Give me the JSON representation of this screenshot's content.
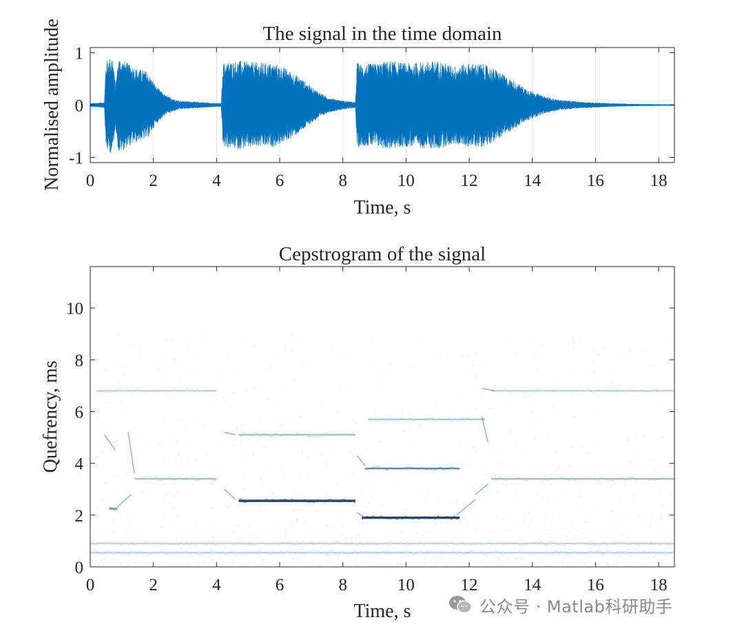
{
  "chart_data": [
    {
      "type": "line",
      "title": "The signal in the time domain",
      "xlabel": "Time, s",
      "ylabel": "Normalised amplitude",
      "xlim": [
        0,
        18.5
      ],
      "ylim": [
        -1.1,
        1.1
      ],
      "xticks": [
        0,
        2,
        4,
        6,
        8,
        10,
        12,
        14,
        16,
        18
      ],
      "yticks": [
        -1,
        0,
        1
      ],
      "ytick_labels": [
        "-1",
        "0",
        "1"
      ],
      "grid": false,
      "series": [
        {
          "name": "signal",
          "color": "#0072BD",
          "envelope_time_s": [
            0,
            0.45,
            0.5,
            0.7,
            0.8,
            0.9,
            1.0,
            1.2,
            1.5,
            1.8,
            2.1,
            2.4,
            2.8,
            3.3,
            3.8,
            4.15,
            4.2,
            4.3,
            4.7,
            5.2,
            5.8,
            6.2,
            6.6,
            7.0,
            7.5,
            8.0,
            8.4,
            8.45,
            8.6,
            9.0,
            9.5,
            10.0,
            10.5,
            11.0,
            11.5,
            12.0,
            12.4,
            12.8,
            13.3,
            13.8,
            14.3,
            14.8,
            15.5,
            16.5,
            17.5,
            18.5
          ],
          "envelope_amplitude": [
            0.03,
            0.05,
            0.85,
            0.95,
            0.4,
            0.92,
            0.88,
            0.8,
            0.7,
            0.65,
            0.35,
            0.18,
            0.08,
            0.06,
            0.04,
            0.03,
            0.8,
            0.82,
            0.85,
            0.82,
            0.8,
            0.7,
            0.55,
            0.35,
            0.15,
            0.08,
            0.05,
            0.82,
            0.78,
            0.8,
            0.85,
            0.8,
            0.82,
            0.85,
            0.75,
            0.8,
            0.8,
            0.7,
            0.5,
            0.32,
            0.18,
            0.1,
            0.06,
            0.03,
            0.015,
            0.01
          ]
        }
      ]
    },
    {
      "type": "heatmap",
      "title": "Cepstrogram of the signal",
      "xlabel": "Time, s",
      "ylabel": "Quefrency, ms",
      "xlim": [
        0,
        18.5
      ],
      "ylim": [
        0,
        11.6
      ],
      "xticks": [
        0,
        2,
        4,
        6,
        8,
        10,
        12,
        14,
        16,
        18
      ],
      "yticks": [
        0,
        2,
        4,
        6,
        8,
        10
      ],
      "colormap": "white-to-dark-blue",
      "grid": false,
      "pitch_tracks": [
        {
          "t0": 0.6,
          "t1": 0.85,
          "q": 2.25,
          "intensity": 0.55
        },
        {
          "t0": 1.4,
          "t1": 4.0,
          "q": 3.4,
          "intensity": 0.45
        },
        {
          "t0": 4.7,
          "t1": 8.4,
          "q": 2.55,
          "intensity": 0.95
        },
        {
          "t0": 4.7,
          "t1": 8.4,
          "q": 5.1,
          "intensity": 0.45
        },
        {
          "t0": 8.6,
          "t1": 11.7,
          "q": 1.9,
          "intensity": 0.95
        },
        {
          "t0": 8.7,
          "t1": 11.7,
          "q": 3.8,
          "intensity": 0.7
        },
        {
          "t0": 8.8,
          "t1": 12.5,
          "q": 5.7,
          "intensity": 0.35
        },
        {
          "t0": 12.7,
          "t1": 18.5,
          "q": 3.4,
          "intensity": 0.5
        },
        {
          "t0": 12.7,
          "t1": 18.5,
          "q": 6.8,
          "intensity": 0.15
        },
        {
          "t0": 0.2,
          "t1": 4.0,
          "q": 6.8,
          "intensity": 0.12
        },
        {
          "t0": 0.0,
          "t1": 18.5,
          "q": 0.55,
          "intensity": 0.15
        },
        {
          "t0": 0.0,
          "t1": 18.5,
          "q": 0.9,
          "intensity": 0.1
        }
      ]
    }
  ],
  "watermark": {
    "text": "公众号 · Matlab科研助手",
    "icon": "wechat-icon"
  }
}
